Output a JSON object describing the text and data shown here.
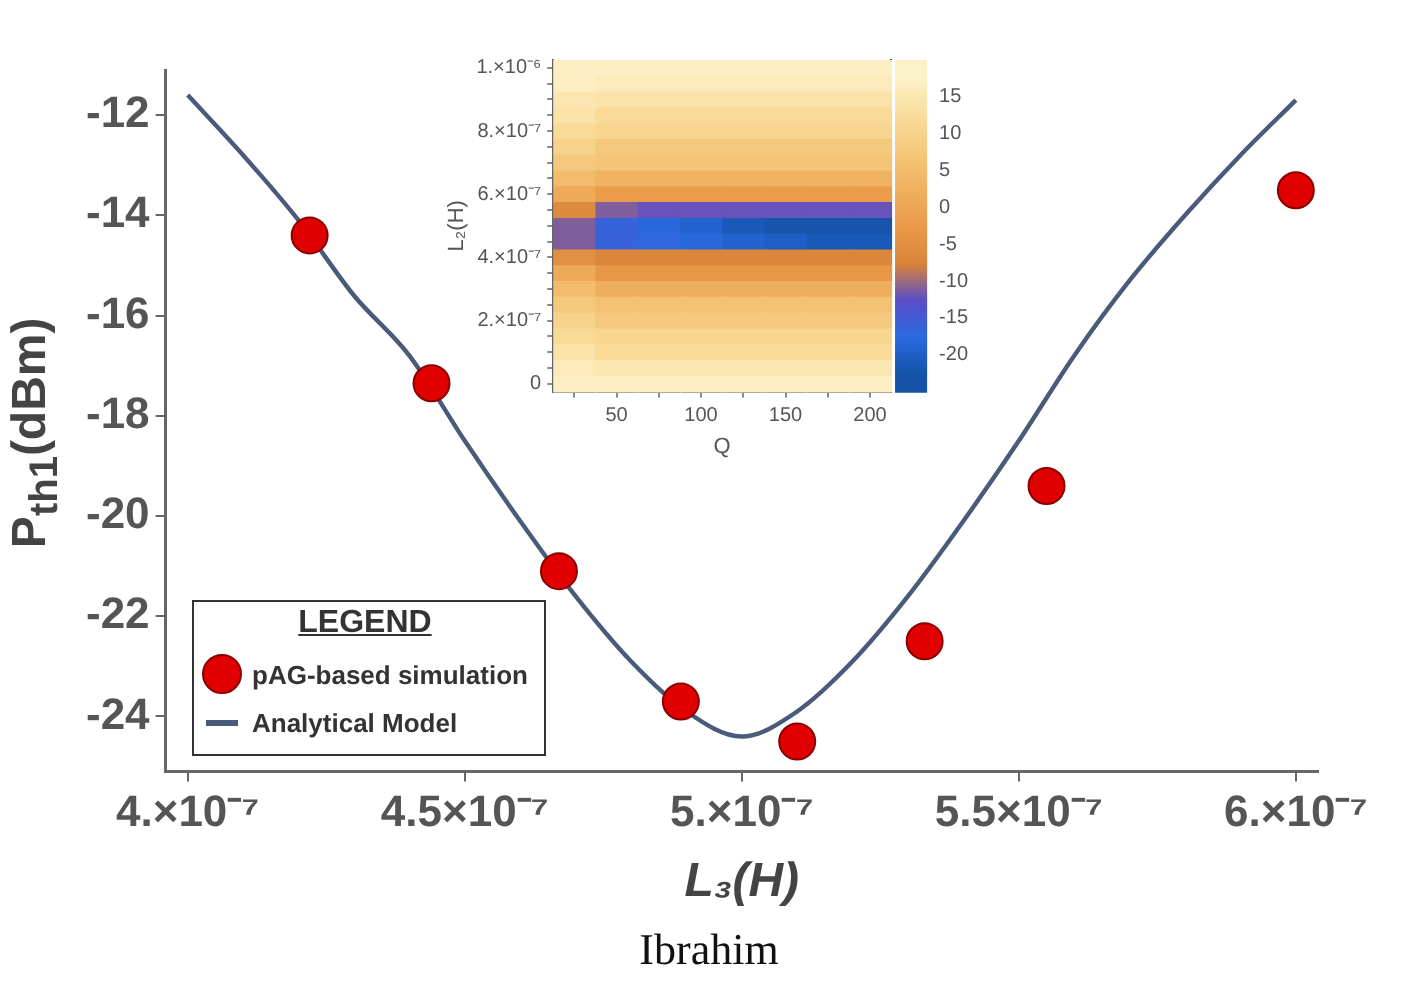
{
  "chart_data": [
    {
      "type": "line",
      "xlabel": "L₃(H)",
      "ylabel": "P$_{th1}$(dBm)",
      "legend_title": "LEGEND",
      "legend": "bottom left",
      "grid": false,
      "xlim": [
        3.96e-07,
        6.04e-07
      ],
      "xticks": [
        {
          "value": 4e-07,
          "label": "4.×10⁻⁷"
        },
        {
          "value": 4.5e-07,
          "label": "4.5×10⁻⁷"
        },
        {
          "value": 5e-07,
          "label": "5.×10⁻⁷"
        },
        {
          "value": 5.5e-07,
          "label": "5.5×10⁻⁷"
        },
        {
          "value": 6e-07,
          "label": "6.×10⁻⁷"
        }
      ],
      "ylim": [
        -25.1,
        -11.1
      ],
      "yticks": [
        -24,
        -22,
        -20,
        -18,
        -16,
        -14,
        -12
      ],
      "series": [
        {
          "name": "pAG-based simulation",
          "type": "scatter",
          "marker": "circle",
          "color": "#e00000",
          "x": [
            4.22e-07,
            4.44e-07,
            4.67e-07,
            4.89e-07,
            5.1e-07,
            5.33e-07,
            5.55e-07,
            6e-07
          ],
          "values": [
            -14.4,
            -17.35,
            -21.1,
            -23.7,
            -24.5,
            -22.5,
            -19.4,
            -13.5
          ]
        },
        {
          "name": "Analytical Model",
          "type": "line",
          "marker": "none",
          "line_style": "solid",
          "color": "#4a5a7a",
          "x": [
            4e-07,
            4.1e-07,
            4.2e-07,
            4.3e-07,
            4.4e-07,
            4.5e-07,
            4.6e-07,
            4.7e-07,
            4.8e-07,
            4.9e-07,
            5e-07,
            5.1e-07,
            5.2e-07,
            5.3e-07,
            5.4e-07,
            5.5e-07,
            5.6e-07,
            5.7e-07,
            5.8e-07,
            5.9e-07,
            6e-07
          ],
          "values": [
            -11.6,
            -12.8,
            -14.1,
            -15.6,
            -16.8,
            -18.5,
            -20.1,
            -21.6,
            -22.9,
            -23.9,
            -24.4,
            -23.9,
            -22.9,
            -21.6,
            -20.1,
            -18.5,
            -16.8,
            -15.3,
            -14,
            -12.8,
            -11.7
          ]
        }
      ],
      "annotations": [
        "Ibrahim"
      ]
    },
    {
      "type": "heatmap",
      "xlabel": "Q",
      "ylabel": "L₂(H)",
      "categories": [
        null,
        "50",
        null,
        "100",
        null,
        "150",
        null,
        "200"
      ],
      "y_categories": [
        "1.×10⁻⁶",
        null,
        null,
        null,
        "8.×10⁻⁷",
        null,
        null,
        null,
        "6.×10⁻⁷",
        null,
        null,
        null,
        "4.×10⁻⁷",
        null,
        null,
        null,
        "2.×10⁻⁷",
        null,
        null,
        null,
        "0"
      ],
      "clim": [
        -25,
        20
      ],
      "cticks": [
        -20,
        -15,
        -10,
        -5,
        0,
        5,
        10,
        15
      ],
      "colors": [
        "#1452a8",
        "#2a6ae0",
        "#5a4ec8",
        "#d8843a",
        "#e99a48",
        "#f0b060",
        "#f5c77a",
        "#f9dc9a",
        "#fdf0c8"
      ],
      "cells": [
        [
          17,
          17,
          17,
          17,
          17,
          17,
          17,
          17
        ],
        [
          17,
          16,
          16,
          16,
          16,
          16,
          16,
          16
        ],
        [
          15,
          14,
          14,
          14,
          14,
          14,
          14,
          14
        ],
        [
          14,
          12,
          12,
          12,
          12,
          12,
          12,
          12
        ],
        [
          12,
          11,
          11,
          11,
          11,
          11,
          11,
          11
        ],
        [
          10,
          8,
          8,
          8,
          8,
          8,
          8,
          8
        ],
        [
          8,
          7,
          7,
          7,
          7,
          7,
          7,
          7
        ],
        [
          5,
          3,
          3,
          3,
          3,
          3,
          3,
          3
        ],
        [
          1,
          -2,
          -2,
          -2,
          -2,
          -2,
          -2,
          -2
        ],
        [
          -6,
          -11,
          -12,
          -12,
          -12,
          -12,
          -12,
          -12
        ],
        [
          -11,
          -16,
          -18,
          -19,
          -21,
          -22,
          -22,
          -22
        ],
        [
          -11,
          -16,
          -17,
          -18,
          -19,
          -20,
          -21,
          -21
        ],
        [
          -5,
          -7,
          -7,
          -7,
          -7,
          -7,
          -7,
          -7
        ],
        [
          1,
          -3,
          -3,
          -3,
          -3,
          -3,
          -3,
          -3
        ],
        [
          5,
          2,
          2,
          2,
          2,
          2,
          2,
          2
        ],
        [
          8,
          6,
          6,
          6,
          6,
          6,
          6,
          6
        ],
        [
          10,
          8,
          8,
          8,
          8,
          8,
          8,
          8
        ],
        [
          12,
          11,
          11,
          11,
          11,
          11,
          11,
          11
        ],
        [
          14,
          12,
          12,
          12,
          12,
          12,
          12,
          12
        ],
        [
          16,
          15,
          15,
          15,
          15,
          15,
          15,
          15
        ],
        [
          17,
          17,
          17,
          17,
          17,
          17,
          17,
          17
        ]
      ]
    }
  ]
}
